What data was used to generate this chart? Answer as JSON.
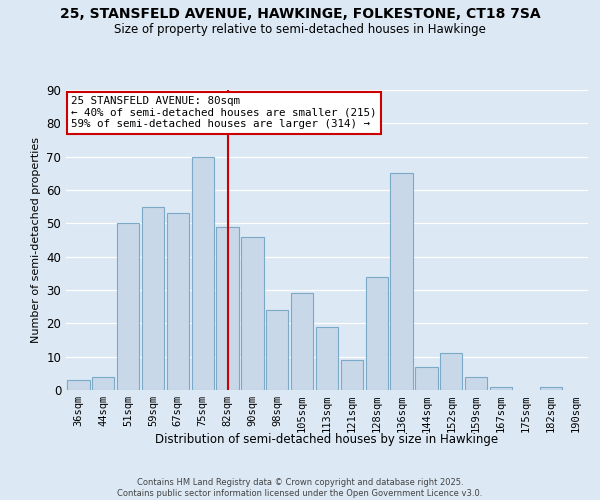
{
  "title": "25, STANSFELD AVENUE, HAWKINGE, FOLKESTONE, CT18 7SA",
  "subtitle": "Size of property relative to semi-detached houses in Hawkinge",
  "xlabel": "Distribution of semi-detached houses by size in Hawkinge",
  "ylabel": "Number of semi-detached properties",
  "categories": [
    "36sqm",
    "44sqm",
    "51sqm",
    "59sqm",
    "67sqm",
    "75sqm",
    "82sqm",
    "90sqm",
    "98sqm",
    "105sqm",
    "113sqm",
    "121sqm",
    "128sqm",
    "136sqm",
    "144sqm",
    "152sqm",
    "159sqm",
    "167sqm",
    "175sqm",
    "182sqm",
    "190sqm"
  ],
  "values": [
    3,
    4,
    50,
    55,
    53,
    70,
    49,
    46,
    24,
    29,
    19,
    9,
    34,
    65,
    7,
    11,
    4,
    1,
    0,
    1,
    0
  ],
  "bar_color": "#c8d8e8",
  "bar_edge_color": "#7aaac8",
  "vline_x_idx": 6,
  "vline_color": "#cc0000",
  "annotation_title": "25 STANSFELD AVENUE: 80sqm",
  "annotation_line1": "← 40% of semi-detached houses are smaller (215)",
  "annotation_line2": "59% of semi-detached houses are larger (314) →",
  "annotation_box_color": "#ffffff",
  "annotation_box_edge": "#cc0000",
  "ylim": [
    0,
    90
  ],
  "yticks": [
    0,
    10,
    20,
    30,
    40,
    50,
    60,
    70,
    80,
    90
  ],
  "background_color": "#dce8f4",
  "grid_color": "#ffffff",
  "footer_line1": "Contains HM Land Registry data © Crown copyright and database right 2025.",
  "footer_line2": "Contains public sector information licensed under the Open Government Licence v3.0."
}
